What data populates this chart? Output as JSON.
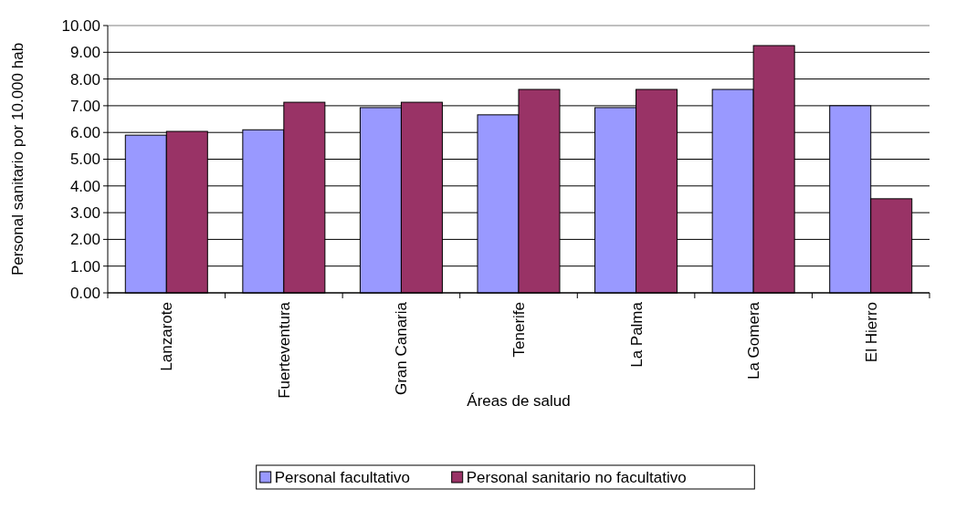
{
  "chart_data": {
    "type": "bar",
    "xlabel": "Áreas de salud",
    "ylabel": "Personal sanitario por 10.000 hab",
    "categories": [
      "Lanzarote",
      "Fuerteventura",
      "Gran Canaria",
      "Tenerife",
      "La Palma",
      "La Gomera",
      "El Hierro"
    ],
    "series": [
      {
        "name": "Personal facultativo",
        "color": "#9999ff",
        "values": [
          5.9,
          6.1,
          6.93,
          6.66,
          6.93,
          7.61,
          7.0
        ]
      },
      {
        "name": "Personal sanitario no facultativo",
        "color": "#993366",
        "values": [
          6.04,
          7.13,
          7.13,
          7.61,
          7.61,
          9.25,
          3.52
        ]
      }
    ],
    "ylim": [
      0,
      10
    ],
    "yticks": [
      {
        "value": 0,
        "label": "0.00"
      },
      {
        "value": 1,
        "label": "1.00"
      },
      {
        "value": 2,
        "label": "2.00"
      },
      {
        "value": 3,
        "label": "3.00"
      },
      {
        "value": 4,
        "label": "4.00"
      },
      {
        "value": 5,
        "label": "5.00"
      },
      {
        "value": 6,
        "label": "6.00"
      },
      {
        "value": 7,
        "label": "7.00"
      },
      {
        "value": 8,
        "label": "8.00"
      },
      {
        "value": 9,
        "label": "9.00"
      },
      {
        "value": 10,
        "label": "10.00"
      }
    ],
    "grid": "y",
    "legend": "bottom"
  }
}
